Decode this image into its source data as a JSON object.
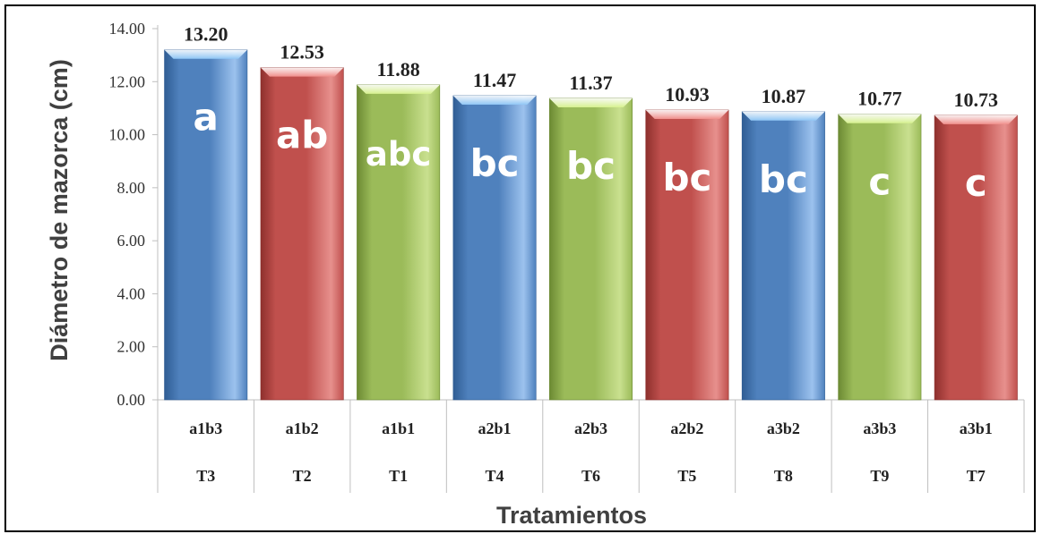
{
  "chart_data": {
    "type": "bar",
    "categories": [
      "a1b3",
      "a1b2",
      "a1b1",
      "a2b1",
      "a2b3",
      "a2b2",
      "a3b2",
      "a3b3",
      "a3b1"
    ],
    "categories_level2": [
      "T3",
      "T2",
      "T1",
      "T4",
      "T6",
      "T5",
      "T8",
      "T9",
      "T7"
    ],
    "values": [
      13.2,
      12.53,
      11.88,
      11.47,
      11.37,
      10.93,
      10.87,
      10.77,
      10.73
    ],
    "value_labels": [
      "13.20",
      "12.53",
      "11.88",
      "11.47",
      "11.37",
      "10.93",
      "10.87",
      "10.77",
      "10.73"
    ],
    "group_letters": [
      "a",
      "ab",
      "abc",
      "bc",
      "bc",
      "bc",
      "bc",
      "c",
      "c"
    ],
    "bar_colors": [
      "blue",
      "red",
      "green",
      "blue",
      "green",
      "red",
      "blue",
      "green",
      "red"
    ],
    "palette": {
      "blue": {
        "main": "#4f81bd",
        "light": "#9cc2ee",
        "dark": "#2f5d94",
        "top": "#8fc6f5"
      },
      "red": {
        "main": "#c0504d",
        "light": "#e7908d",
        "dark": "#8e302d",
        "top": "#f08f8b"
      },
      "green": {
        "main": "#9bbb59",
        "light": "#c9e08f",
        "dark": "#6c8a33",
        "top": "#d6f18f"
      }
    },
    "yticks": [
      "0.00",
      "2.00",
      "4.00",
      "6.00",
      "8.00",
      "10.00",
      "12.00",
      "14.00"
    ],
    "ylim": [
      0,
      14
    ],
    "ylabel": "Diámetro de mazorca (cm)",
    "xlabel": "Tratamientos",
    "grid": false,
    "legend": "none"
  }
}
